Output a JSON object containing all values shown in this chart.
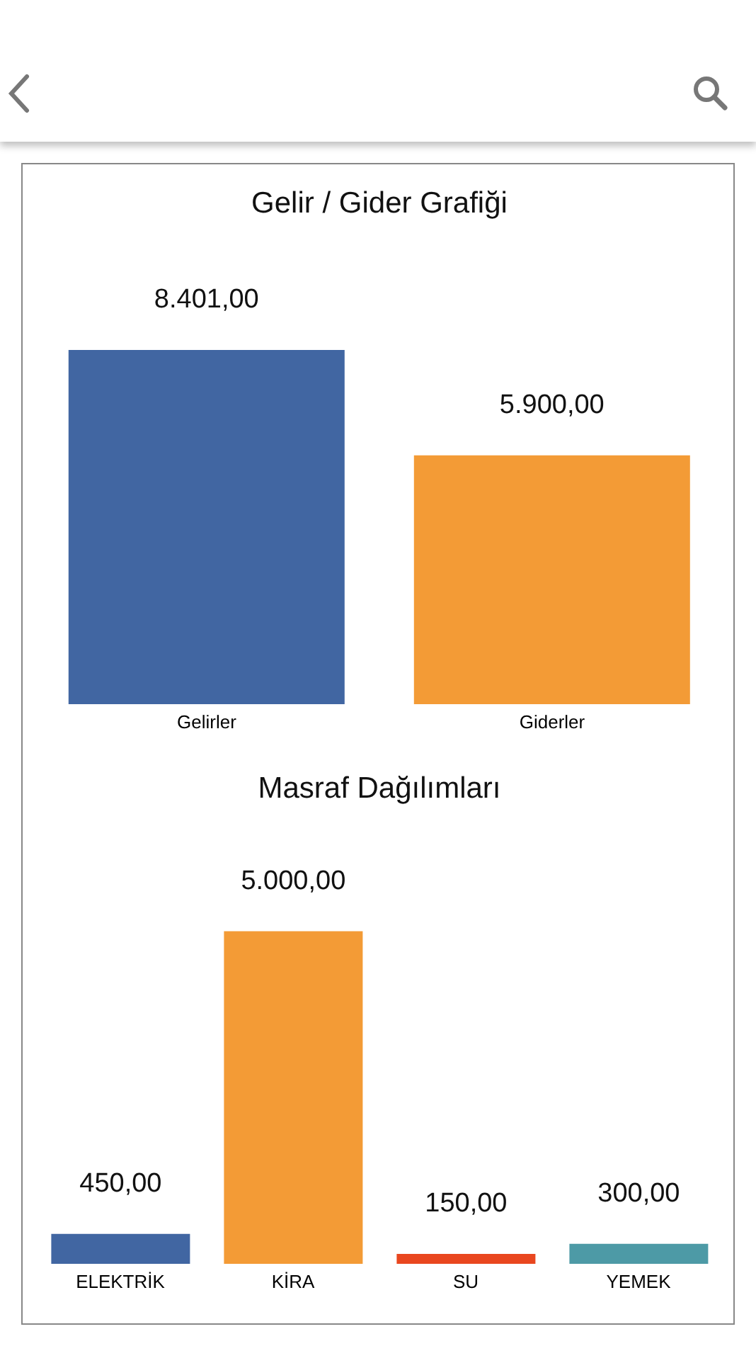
{
  "chart_data": [
    {
      "type": "bar",
      "title": "Gelir / Gider Grafiği",
      "categories": [
        "Gelirler",
        "Giderler"
      ],
      "values": [
        8401,
        5900
      ],
      "colors": [
        "#4166a2",
        "#f39b36"
      ],
      "value_labels": [
        "8.401,00",
        "5.900,00"
      ]
    },
    {
      "type": "bar",
      "title": "Masraf Dağılımları",
      "categories": [
        "ELEKTRİK",
        "KİRA",
        "SU",
        "YEMEK"
      ],
      "values": [
        450,
        5000,
        150,
        300
      ],
      "colors": [
        "#4166a2",
        "#f39b36",
        "#e9471f",
        "#4d9aa6"
      ],
      "value_labels": [
        "450,00",
        "5.000,00",
        "150,00",
        "300,00"
      ]
    }
  ]
}
